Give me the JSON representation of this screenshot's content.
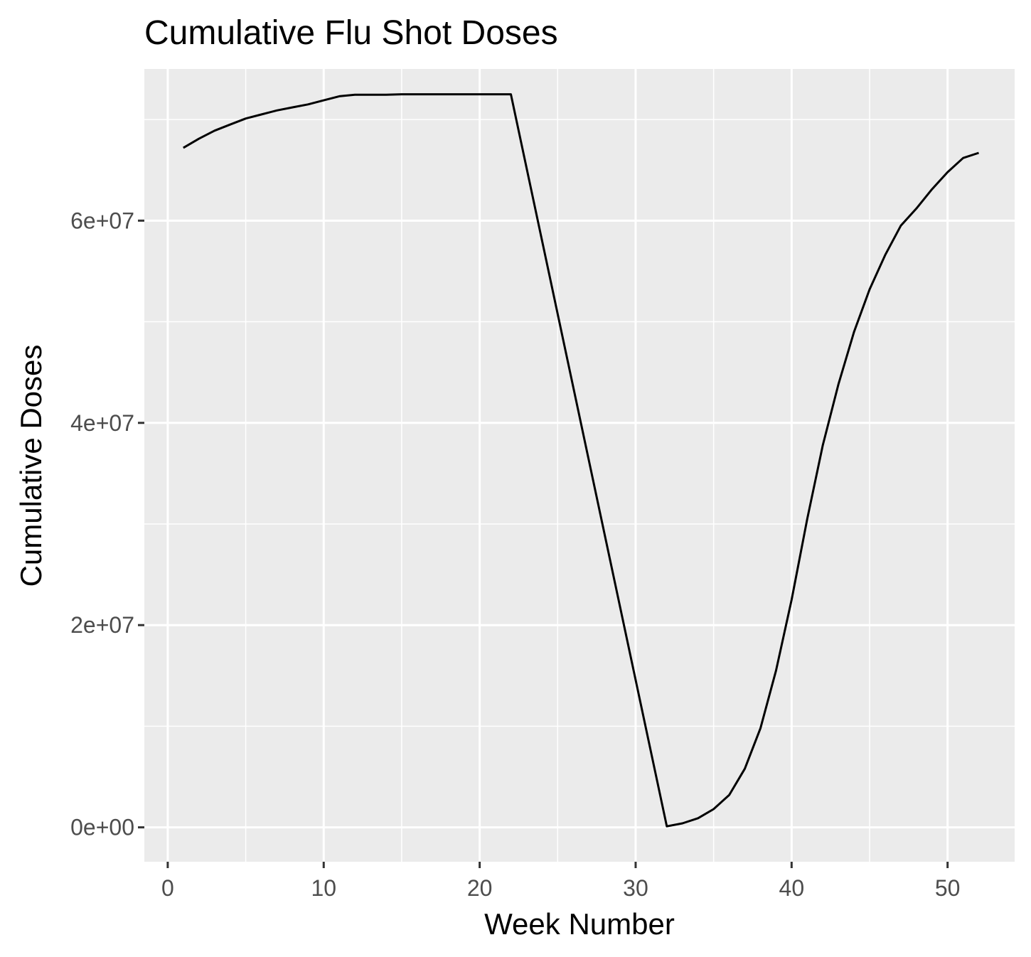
{
  "chart_data": {
    "type": "line",
    "title": "Cumulative Flu Shot Doses",
    "xlabel": "Week Number",
    "ylabel": "Cumulative Doses",
    "xlim": [
      -1.5,
      54.3
    ],
    "ylim": [
      -3400000,
      75000000
    ],
    "x_ticks": [
      0,
      10,
      20,
      30,
      40,
      50
    ],
    "x_tick_labels": [
      "0",
      "10",
      "20",
      "30",
      "40",
      "50"
    ],
    "y_ticks": [
      0,
      20000000,
      40000000,
      60000000
    ],
    "y_tick_labels": [
      "0e+00",
      "2e+07",
      "4e+07",
      "6e+07"
    ],
    "x_minor_breaks": [
      5,
      15,
      25,
      35,
      45
    ],
    "y_minor_breaks": [
      10000000,
      30000000,
      50000000,
      70000000
    ],
    "grid": true,
    "background": "#ebebeb",
    "grid_color": "#ffffff",
    "line_color": "#000000",
    "series": [
      {
        "x": [
          1,
          2,
          3,
          4,
          5,
          6,
          7,
          8,
          9,
          10,
          11,
          12,
          13,
          14,
          15,
          16,
          17,
          18,
          19,
          20,
          21,
          22,
          32,
          33,
          34,
          35,
          36,
          37,
          38,
          39,
          40,
          41,
          42,
          43,
          44,
          45,
          46,
          47,
          48,
          49,
          50,
          51,
          52
        ],
        "y": [
          67200000,
          68100000,
          68900000,
          69500000,
          70100000,
          70500000,
          70900000,
          71200000,
          71500000,
          71900000,
          72300000,
          72450000,
          72450000,
          72450000,
          72500000,
          72500000,
          72500000,
          72500000,
          72500000,
          72500000,
          72500000,
          72500000,
          100000,
          400000,
          900000,
          1800000,
          3200000,
          5800000,
          9800000,
          15500000,
          22500000,
          30500000,
          37800000,
          43800000,
          49000000,
          53200000,
          56600000,
          59500000,
          61200000,
          63100000,
          64800000,
          66200000,
          66700000
        ]
      }
    ]
  }
}
